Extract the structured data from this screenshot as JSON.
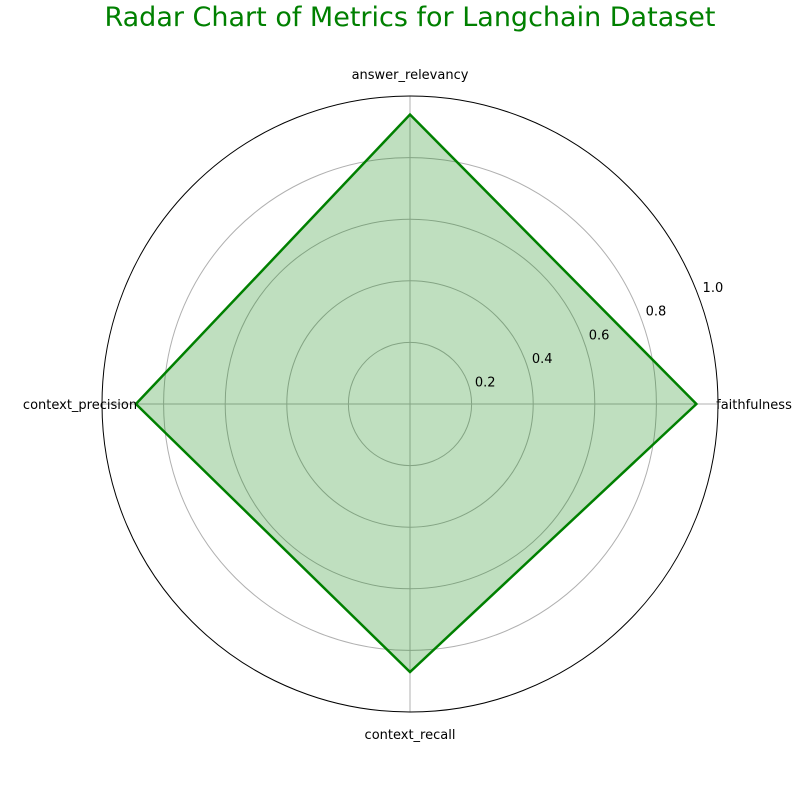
{
  "colors": {
    "title": "#008000",
    "series_line": "#008000",
    "series_fill": "#008000",
    "grid": "#b0b0b0",
    "frame": "#000000"
  },
  "chart_data": {
    "type": "radar",
    "title": "Radar Chart of Metrics for Langchain Dataset",
    "axes": [
      "faithfulness",
      "answer_relevancy",
      "context_precision",
      "context_recall"
    ],
    "values": [
      0.93,
      0.94,
      0.89,
      0.87
    ],
    "rlim": [
      0,
      1.0
    ],
    "rticks": [
      0.2,
      0.4,
      0.6,
      0.8,
      1.0
    ],
    "rtick_labels": [
      "0.2",
      "0.4",
      "0.6",
      "0.8",
      "1.0"
    ],
    "fill_alpha": 0.25,
    "grid": true,
    "legend": false
  }
}
